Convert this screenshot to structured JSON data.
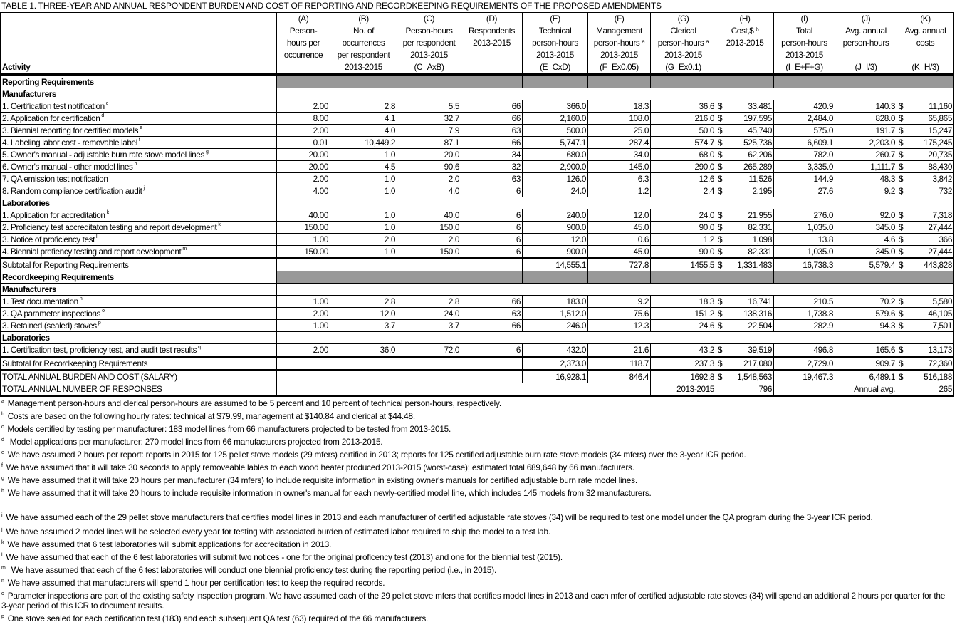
{
  "title": "TABLE 1.  THREE-YEAR AND ANNUAL RESPONDENT BURDEN AND COST OF REPORTING AND RECORDKEEPING REQUIREMENTS OF THE PROPOSED AMENDMENTS",
  "columns": [
    {
      "lines": [
        "Activity"
      ]
    },
    {
      "lines": [
        "(A)",
        "Person-",
        "hours per",
        "occurrence",
        ""
      ]
    },
    {
      "lines": [
        "(B)",
        "No. of",
        "occurrences",
        "per respondent",
        "2013-2015"
      ]
    },
    {
      "lines": [
        "(C)",
        "Person-hours",
        "per respondent",
        "2013-2015",
        "(C=AxB)"
      ]
    },
    {
      "lines": [
        "(D)",
        "Respondents",
        "2013-2015",
        "",
        ""
      ]
    },
    {
      "lines": [
        "(E)",
        "Technical",
        "person-hours",
        "2013-2015",
        "(E=CxD)"
      ]
    },
    {
      "lines": [
        "(F)",
        "Management",
        "person-hours ᵃ",
        "2013-2015",
        "(F=Ex0.05)"
      ]
    },
    {
      "lines": [
        "(G)",
        "Clerical",
        "person-hours ᵃ",
        "2013-2015",
        "(G=Ex0.1)"
      ]
    },
    {
      "lines": [
        "(H)",
        "Cost,$ ᵇ",
        "2013-2015",
        "",
        ""
      ]
    },
    {
      "lines": [
        "(I)",
        "Total",
        "person-hours",
        "2013-2015",
        "(I=E+F+G)"
      ]
    },
    {
      "lines": [
        "(J)",
        "Avg. annual",
        "person-hours",
        "",
        "(J=I/3)"
      ]
    },
    {
      "lines": [
        "(K)",
        "Avg. annual",
        "costs",
        "",
        "(K=H/3)"
      ]
    }
  ],
  "rows": [
    {
      "type": "section",
      "label": "Reporting Requirements"
    },
    {
      "type": "group",
      "label": "Manufacturers"
    },
    {
      "type": "item",
      "label": "1.  Certification test notification",
      "note": "c",
      "values": [
        "2.00",
        "2.8",
        "5.5",
        "66",
        "366.0",
        "18.3",
        "36.6",
        "33,481",
        "420.9",
        "140.3",
        "11,160"
      ]
    },
    {
      "type": "item",
      "label": "2.  Application for certification",
      "note": "d",
      "values": [
        "8.00",
        "4.1",
        "32.7",
        "66",
        "2,160.0",
        "108.0",
        "216.0",
        "197,595",
        "2,484.0",
        "828.0",
        "65,865"
      ]
    },
    {
      "type": "item",
      "label": "3.  Biennial reporting for certified models",
      "note": "e",
      "values": [
        "2.00",
        "4.0",
        "7.9",
        "63",
        "500.0",
        "25.0",
        "50.0",
        "45,740",
        "575.0",
        "191.7",
        "15,247"
      ]
    },
    {
      "type": "item",
      "label": "4.  Labeling labor cost - removable label",
      "note": "f",
      "values": [
        "0.01",
        "10,449.2",
        "87.1",
        "66",
        "5,747.1",
        "287.4",
        "574.7",
        "525,736",
        "6,609.1",
        "2,203.0",
        "175,245"
      ]
    },
    {
      "type": "item",
      "label": "5.  Owner's manual - adjustable burn rate stove model lines",
      "note": "g",
      "values": [
        "20.00",
        "1.0",
        "20.0",
        "34",
        "680.0",
        "34.0",
        "68.0",
        "62,206",
        "782.0",
        "260.7",
        "20,735"
      ]
    },
    {
      "type": "item",
      "label": "6.  Owner's manual - other model lines",
      "note": "h",
      "values": [
        "20.00",
        "4.5",
        "90.6",
        "32",
        "2,900.0",
        "145.0",
        "290.0",
        "265,289",
        "3,335.0",
        "1,111.7",
        "88,430"
      ]
    },
    {
      "type": "item",
      "label": "7.  QA emission test notification",
      "note": "i",
      "values": [
        "2.00",
        "1.0",
        "2.0",
        "63",
        "126.0",
        "6.3",
        "12.6",
        "11,526",
        "144.9",
        "48.3",
        "3,842"
      ]
    },
    {
      "type": "item",
      "label": "8.  Random compliance certification audit",
      "note": "j",
      "values": [
        "4.00",
        "1.0",
        "4.0",
        "6",
        "24.0",
        "1.2",
        "2.4",
        "2,195",
        "27.6",
        "9.2",
        "732"
      ]
    },
    {
      "type": "group",
      "label": "Laboratories"
    },
    {
      "type": "item",
      "label": "1.  Application for accreditation",
      "note": "k",
      "values": [
        "40.00",
        "1.0",
        "40.0",
        "6",
        "240.0",
        "12.0",
        "24.0",
        "21,955",
        "276.0",
        "92.0",
        "7,318"
      ]
    },
    {
      "type": "item",
      "label": "2.  Proficiency test accreditaton testing and report development",
      "note": "k",
      "values": [
        "150.00",
        "1.0",
        "150.0",
        "6",
        "900.0",
        "45.0",
        "90.0",
        "82,331",
        "1,035.0",
        "345.0",
        "27,444"
      ]
    },
    {
      "type": "item",
      "label": "3.  Notice of proficiency test",
      "note": "l",
      "values": [
        "1.00",
        "2.0",
        "2.0",
        "6",
        "12.0",
        "0.6",
        "1.2",
        "1,098",
        "13.8",
        "4.6",
        "366"
      ]
    },
    {
      "type": "item",
      "label": "4.  Biennial profiency testing and report development",
      "note": "m",
      "values": [
        "150.00",
        "1.0",
        "150.0",
        "6",
        "900.0",
        "45.0",
        "90.0",
        "82,331",
        "1,035.0",
        "345.0",
        "27,444"
      ]
    },
    {
      "type": "subtotal",
      "label": "Subtotal for Reporting Requirements",
      "merge": false,
      "values": [
        "",
        "",
        "",
        "",
        "14,555.1",
        "727.8",
        "1455.5",
        "1,331,483",
        "16,738.3",
        "5,579.4",
        "443,828"
      ]
    },
    {
      "type": "section",
      "label": "Recordkeeping Requirements"
    },
    {
      "type": "group",
      "label": "Manufacturers"
    },
    {
      "type": "item",
      "label": "1.  Test documentation",
      "note": "n",
      "values": [
        "1.00",
        "2.8",
        "2.8",
        "66",
        "183.0",
        "9.2",
        "18.3",
        "16,741",
        "210.5",
        "70.2",
        "5,580"
      ]
    },
    {
      "type": "item",
      "label": "2.  QA parameter inspections",
      "note": "o",
      "values": [
        "2.00",
        "12.0",
        "24.0",
        "63",
        "1,512.0",
        "75.6",
        "151.2",
        "138,316",
        "1,738.8",
        "579.6",
        "46,105"
      ]
    },
    {
      "type": "item",
      "label": "3.  Retained (sealed) stoves",
      "note": "p",
      "values": [
        "1.00",
        "3.7",
        "3.7",
        "66",
        "246.0",
        "12.3",
        "24.6",
        "22,504",
        "282.9",
        "94.3",
        "7,501"
      ]
    },
    {
      "type": "group",
      "label": "Laboratories"
    },
    {
      "type": "item",
      "label": "1.  Certification test, proficiency test, and audit test results",
      "note": "q",
      "values": [
        "2.00",
        "36.0",
        "72.0",
        "6",
        "432.0",
        "21.6",
        "43.2",
        "39,519",
        "496.8",
        "165.6",
        "13,173"
      ]
    },
    {
      "type": "subtotal",
      "label": "Subtotal for Recordkeeping Requirements",
      "merge": true,
      "values": [
        "",
        "",
        "",
        "",
        "2,373.0",
        "118.7",
        "237.3",
        "217,080",
        "2,729.0",
        "909.7",
        "72,360"
      ]
    },
    {
      "type": "subtotal",
      "label": "TOTAL ANNUAL BURDEN AND COST (SALARY)",
      "merge": true,
      "values": [
        "",
        "",
        "",
        "",
        "16,928.1",
        "846.4",
        "1692.8",
        "1,548,563",
        "19,467.3",
        "6,489.1",
        "516,188"
      ]
    },
    {
      "type": "responses",
      "label": "TOTAL ANNUAL NUMBER OF RESPONSES",
      "period_label": "2013-2015",
      "period_value": "796",
      "annual_label": "Annual avg.",
      "annual_value": "265"
    }
  ],
  "currency_symbol": "$",
  "section_fill_color": "#999999",
  "footnotes": [
    {
      "mark": "a",
      "text": "Management person-hours and clerical person-hours are assumed to be 5 percent and 10 percent of technical person-hours, respectively."
    },
    {
      "mark": "b",
      "text": "Costs are based on the following hourly rates:  technical at $79.99, management at $140.84 and clerical at $44.48."
    },
    {
      "mark": "c",
      "text": "Models certified by testing per manufacturer:  183 model lines from 66 manufacturers projected to be tested from 2013-2015."
    },
    {
      "mark": "d",
      "text": " Model applications per manufacturer:  270 model lines from 66 manufacturers projected from 2013-2015."
    },
    {
      "mark": "e",
      "text": "We have assumed 2 hours per report: reports in 2015 for 125 pellet stove models (29 mfers) certified in 2013; reports for 125 certified adjustable burn rate stove models (34 mfers) over the 3-year ICR period."
    },
    {
      "mark": "f",
      "text": "We have assumed that it will take 30 seconds to apply removeable lables to each wood heater produced 2013-2015 (worst-case); estimated total 689,648 by 66 manufacturers."
    },
    {
      "mark": "g",
      "text": "We have assumed that it will take 20 hours per manufacturer (34 mfers) to include requisite information in existing owner's manuals for certified adjustable burn rate model lines."
    },
    {
      "mark": "h",
      "text": "We have assumed that it will take 20 hours to include requisite information in owner's manual for each newly-certified model line, which includes 145 models from 32 manufacturers."
    },
    {
      "mark": "i",
      "text": "We have assumed each of the 29 pellet stove manufacturers that certifies model lines in 2013 and each manufacturer of certified adjustable rate stoves (34) will be required to test one model under the QA program during the 3-year ICR period."
    },
    {
      "mark": "j",
      "text": "We have assumed 2 model lines will be selected every year for testing with associated burden of estimated labor required to ship the model to a test lab."
    },
    {
      "mark": "k",
      "text": "We have assumed that 6 test laboratories will submit applications for accreditation in 2013."
    },
    {
      "mark": "l",
      "text": "We have assumed that each of the 6 test laboratories will submit two notices - one for the original proficency test (2013) and one for the biennial test (2015)."
    },
    {
      "mark": "m",
      "text": " We have assumed that each of the 6 test laboratories will conduct one biennial proficiency test during the reporting period (i.e., in 2015)."
    },
    {
      "mark": "n",
      "text": "We have assumed that manufacturers will spend 1 hour per certification test to keep the required records."
    },
    {
      "mark": "o",
      "text": "Parameter inspections are part of the existing safety inspection program.  We have assumed each of the 29 pellet stove mfers that certifies model lines in 2013 and each mfer of certified adjustable rate stoves (34) will spend an additional 2 hours per quarter for the 3-year period of this ICR to document results."
    },
    {
      "mark": "p",
      "text": "One stove sealed for each certification test (183) and each subsequent QA test (63) required of the 66 manufacturers."
    }
  ]
}
